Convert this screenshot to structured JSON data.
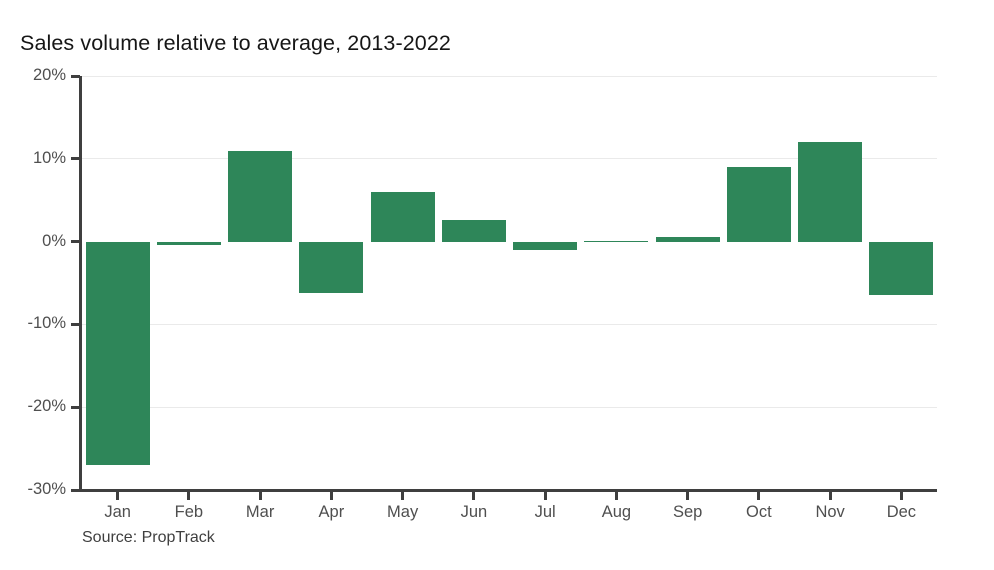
{
  "page": {
    "title": "Sales volume relative to average, 2013-2022",
    "source_caption": "Source: PropTrack"
  },
  "chart_data": {
    "type": "bar",
    "title": "Sales volume relative to average, 2013-2022",
    "source": "Source: PropTrack",
    "categories": [
      "Jan",
      "Feb",
      "Mar",
      "Apr",
      "May",
      "Jun",
      "Jul",
      "Aug",
      "Sep",
      "Oct",
      "Nov",
      "Dec"
    ],
    "values": [
      -27,
      -0.4,
      11,
      -6.2,
      6,
      2.6,
      -1,
      0.1,
      0.5,
      9,
      12,
      -6.5
    ],
    "unit": "%",
    "xlabel": "",
    "ylabel": "",
    "ylim": [
      -30,
      20
    ],
    "yticks": [
      20,
      10,
      0,
      -10,
      -20,
      -30
    ],
    "ytick_labels": [
      "20%",
      "10%",
      "0%",
      "-10%",
      "-20%",
      "-30%"
    ],
    "grid_values": [
      20,
      10,
      -10,
      -20
    ],
    "grid": "horizontal-light",
    "legend_position": "none",
    "colors": {
      "bar": "#2e8659",
      "axis": "#3f3f3f",
      "gridline": "#eaeaea",
      "tick_label": "#4f4f4f",
      "title": "#161616"
    }
  }
}
